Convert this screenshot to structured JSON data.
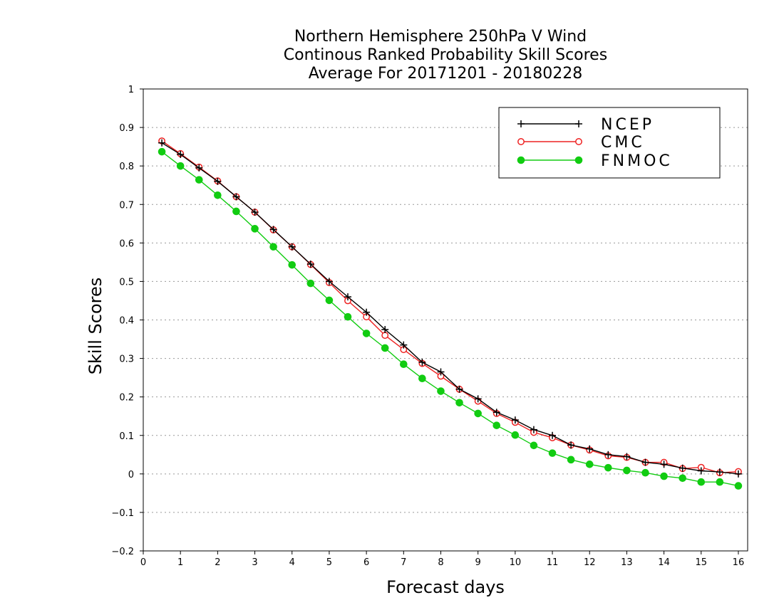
{
  "chart_data": {
    "type": "line",
    "title": [
      "Northern Hemisphere 250hPa V Wind",
      "Continous Ranked Probability Skill Scores",
      "Average For 20171201 - 20180228"
    ],
    "xlabel": "Forecast days",
    "ylabel": "Skill Scores",
    "xlim": [
      0,
      16.25
    ],
    "ylim": [
      -0.2,
      1
    ],
    "xticks": [
      0,
      1,
      2,
      3,
      4,
      5,
      6,
      7,
      8,
      9,
      10,
      11,
      12,
      13,
      14,
      15,
      16
    ],
    "yticks": [
      -0.2,
      -0.1,
      0,
      0.1,
      0.2,
      0.3,
      0.4,
      0.5,
      0.6,
      0.7,
      0.8,
      0.9,
      1
    ],
    "ytick_labels": [
      "−0.2",
      "−0.1",
      "0",
      "0.1",
      "0.2",
      "0.3",
      "0.4",
      "0.5",
      "0.6",
      "0.7",
      "0.8",
      "0.9",
      "1"
    ],
    "grid": "horizontal dotted",
    "legend_position": "top-right",
    "x": [
      0.5,
      1,
      1.5,
      2,
      2.5,
      3,
      3.5,
      4,
      4.5,
      5,
      5.5,
      6,
      6.5,
      7,
      7.5,
      8,
      8.5,
      9,
      9.5,
      10,
      10.5,
      11,
      11.5,
      12,
      12.5,
      13,
      13.5,
      14,
      14.5,
      15,
      15.5,
      16
    ],
    "series": [
      {
        "name": "NCEP",
        "color": "#000000",
        "marker": "plus",
        "values": [
          0.86,
          0.83,
          0.795,
          0.76,
          0.72,
          0.68,
          0.635,
          0.59,
          0.545,
          0.5,
          0.46,
          0.42,
          0.375,
          0.335,
          0.29,
          0.265,
          0.22,
          0.195,
          0.16,
          0.14,
          0.115,
          0.1,
          0.075,
          0.065,
          0.05,
          0.045,
          0.03,
          0.025,
          0.015,
          0.008,
          0.005,
          0.0
        ]
      },
      {
        "name": "CMC",
        "color": "#ee2222",
        "marker": "open-circle",
        "values": [
          0.865,
          0.832,
          0.797,
          0.761,
          0.72,
          0.68,
          0.634,
          0.59,
          0.544,
          0.497,
          0.45,
          0.408,
          0.36,
          0.323,
          0.287,
          0.254,
          0.22,
          0.189,
          0.157,
          0.134,
          0.108,
          0.094,
          0.075,
          0.062,
          0.047,
          0.043,
          0.03,
          0.03,
          0.014,
          0.017,
          0.003,
          0.006
        ]
      },
      {
        "name": "FNMOC",
        "color": "#11cc11",
        "marker": "filled-circle",
        "values": [
          0.837,
          0.8,
          0.764,
          0.724,
          0.682,
          0.637,
          0.59,
          0.543,
          0.495,
          0.451,
          0.408,
          0.365,
          0.327,
          0.285,
          0.248,
          0.215,
          0.185,
          0.157,
          0.126,
          0.101,
          0.074,
          0.054,
          0.037,
          0.025,
          0.016,
          0.009,
          0.003,
          -0.006,
          -0.011,
          -0.021,
          -0.021,
          -0.031
        ]
      }
    ]
  }
}
